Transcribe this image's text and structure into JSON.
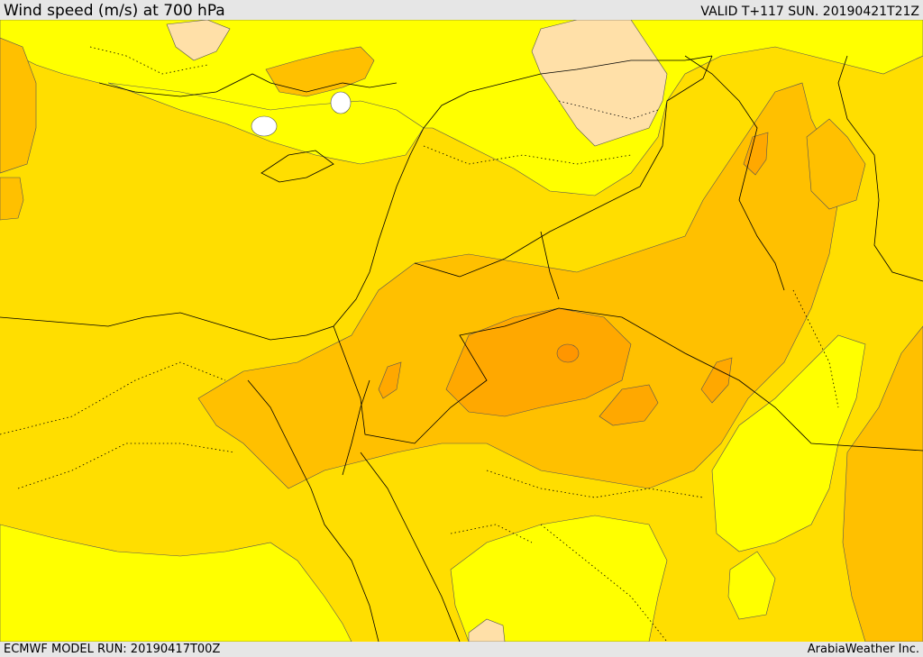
{
  "header": {
    "title": "Wind speed (m/s) at 700 hPa",
    "valid_time": "VALID T+117 SUN. 20190421T21Z"
  },
  "footer": {
    "model_run": "ECMWF MODEL RUN: 20190417T00Z",
    "credit": "ArabiaWeather Inc."
  },
  "colors": {
    "calm": "#ffffff",
    "very_low": "#ffe0a8",
    "low": "#ffff00",
    "moderate": "#ffde00",
    "fresh": "#ffc000",
    "strong": "#ffa800",
    "very_strong": "#ff9600",
    "contour": "#555555",
    "coast": "#000000"
  }
}
